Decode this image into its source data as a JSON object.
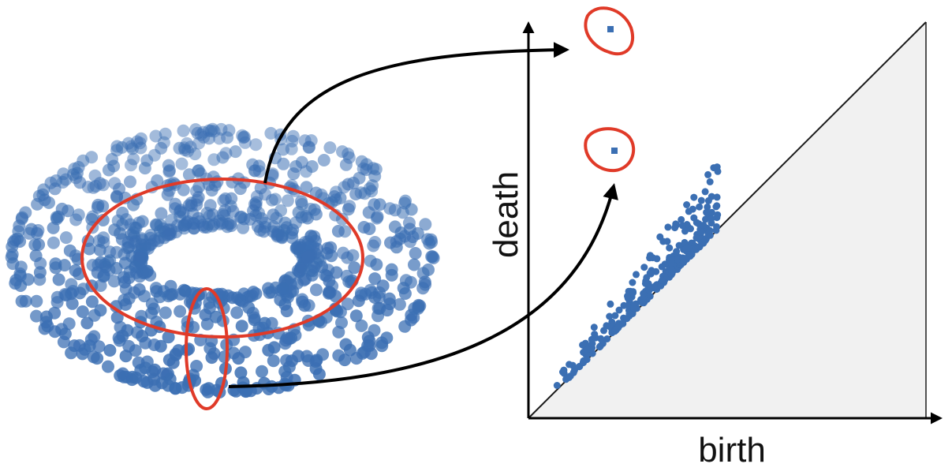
{
  "diagram": {
    "xlabel": "birth",
    "ylabel": "death"
  },
  "colors": {
    "point": "#3b6fb3",
    "highlight": "#e03a28",
    "arrow": "#000000",
    "panel_fill": "#f1f1f1",
    "diagonal": "#1a1a1a"
  }
}
